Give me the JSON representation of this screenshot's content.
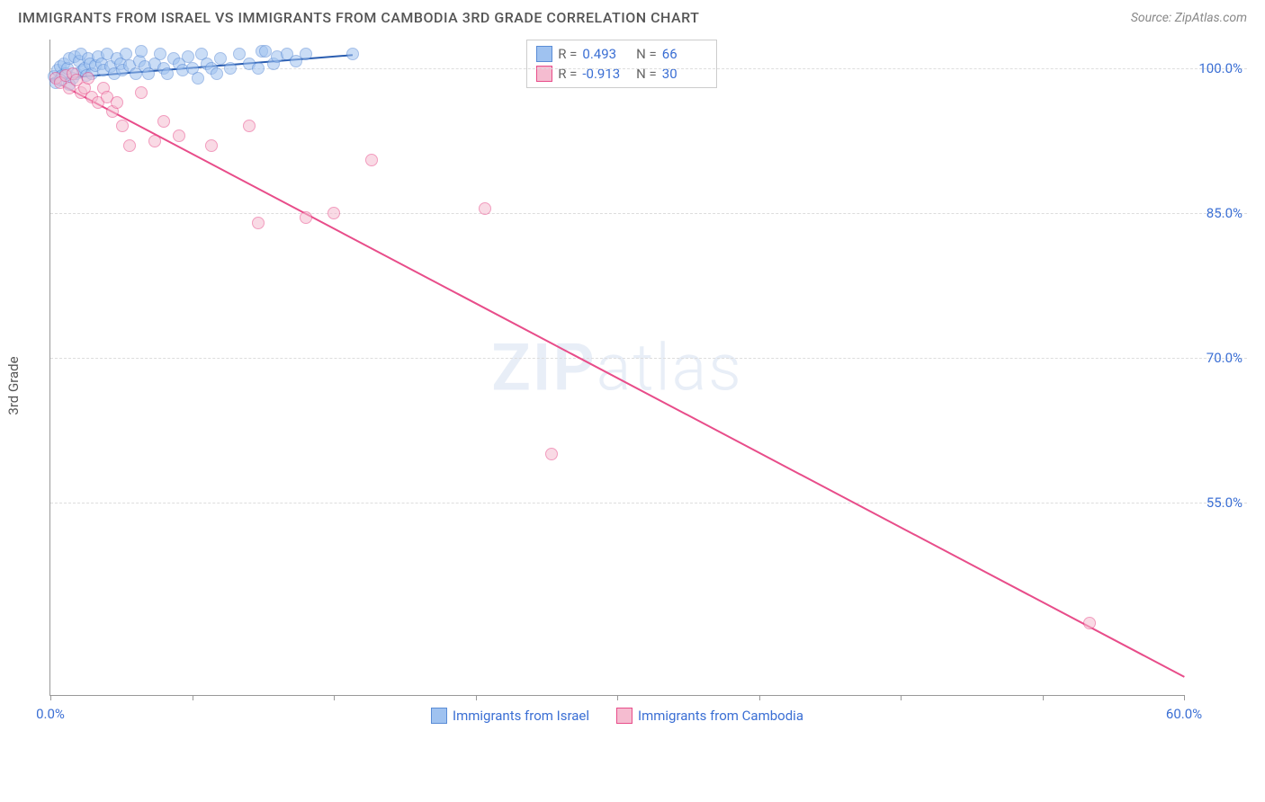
{
  "title": "IMMIGRANTS FROM ISRAEL VS IMMIGRANTS FROM CAMBODIA 3RD GRADE CORRELATION CHART",
  "source": "Source: ZipAtlas.com",
  "watermark_bold": "ZIP",
  "watermark_rest": "atlas",
  "y_axis_label": "3rd Grade",
  "chart": {
    "type": "scatter",
    "xlim": [
      0,
      60
    ],
    "ylim": [
      35,
      103
    ],
    "y_ticks": [
      55,
      70,
      85,
      100
    ],
    "y_tick_labels": [
      "55.0%",
      "70.0%",
      "85.0%",
      "100.0%"
    ],
    "x_ticks": [
      0,
      7.5,
      15,
      22.5,
      30,
      37.5,
      45,
      52.5,
      60
    ],
    "x_tick_labels_shown": {
      "0": "0.0%",
      "60": "60.0%"
    },
    "background_color": "#ffffff",
    "grid_color": "#dddddd",
    "marker_size": 14,
    "marker_opacity": 0.55,
    "series": [
      {
        "name": "Immigrants from Israel",
        "color_fill": "#9fc2f0",
        "color_stroke": "#5a8cd6",
        "R": "0.493",
        "N": "66",
        "regression": {
          "x1": 0,
          "y1": 99.0,
          "x2": 16,
          "y2": 101.5,
          "color": "#2a5db0",
          "width": 2
        },
        "points": [
          [
            0.2,
            99.2
          ],
          [
            0.4,
            99.8
          ],
          [
            0.5,
            100.2
          ],
          [
            0.6,
            99.3
          ],
          [
            0.7,
            100.5
          ],
          [
            0.8,
            99.5
          ],
          [
            0.9,
            100.0
          ],
          [
            1.0,
            101.0
          ],
          [
            1.2,
            99.0
          ],
          [
            1.3,
            101.2
          ],
          [
            1.4,
            99.5
          ],
          [
            1.5,
            100.8
          ],
          [
            1.6,
            101.5
          ],
          [
            1.7,
            99.8
          ],
          [
            1.8,
            100.0
          ],
          [
            1.9,
            99.3
          ],
          [
            2.0,
            101.0
          ],
          [
            2.1,
            100.5
          ],
          [
            2.2,
            99.5
          ],
          [
            2.4,
            100.3
          ],
          [
            2.5,
            101.2
          ],
          [
            2.7,
            100.5
          ],
          [
            2.8,
            99.8
          ],
          [
            3.0,
            101.5
          ],
          [
            3.2,
            100.2
          ],
          [
            3.4,
            99.5
          ],
          [
            3.5,
            101.0
          ],
          [
            3.7,
            100.5
          ],
          [
            3.8,
            99.8
          ],
          [
            4.0,
            101.5
          ],
          [
            4.2,
            100.3
          ],
          [
            4.5,
            99.5
          ],
          [
            4.7,
            100.8
          ],
          [
            4.8,
            101.8
          ],
          [
            5.0,
            100.2
          ],
          [
            5.2,
            99.5
          ],
          [
            5.5,
            100.5
          ],
          [
            5.8,
            101.5
          ],
          [
            6.0,
            100.0
          ],
          [
            6.2,
            99.5
          ],
          [
            6.5,
            101.0
          ],
          [
            6.8,
            100.5
          ],
          [
            7.0,
            99.8
          ],
          [
            7.3,
            101.2
          ],
          [
            7.5,
            100.0
          ],
          [
            7.8,
            99.0
          ],
          [
            8.0,
            101.5
          ],
          [
            8.3,
            100.5
          ],
          [
            8.5,
            100.0
          ],
          [
            8.8,
            99.5
          ],
          [
            9.0,
            101.0
          ],
          [
            9.5,
            100.0
          ],
          [
            10.0,
            101.5
          ],
          [
            10.5,
            100.5
          ],
          [
            11.0,
            100.0
          ],
          [
            11.2,
            101.8
          ],
          [
            11.4,
            101.8
          ],
          [
            11.8,
            100.5
          ],
          [
            12.0,
            101.2
          ],
          [
            12.5,
            101.5
          ],
          [
            13.0,
            100.8
          ],
          [
            13.5,
            101.5
          ],
          [
            16.0,
            101.5
          ],
          [
            0.3,
            98.5
          ],
          [
            0.5,
            98.8
          ],
          [
            1.0,
            98.3
          ]
        ]
      },
      {
        "name": "Immigrants from Cambodia",
        "color_fill": "#f5bcd0",
        "color_stroke": "#e84d8a",
        "R": "-0.913",
        "N": "30",
        "regression": {
          "x1": 0,
          "y1": 99.0,
          "x2": 60,
          "y2": 37.0,
          "color": "#e84d8a",
          "width": 2
        },
        "points": [
          [
            0.3,
            99.0
          ],
          [
            0.5,
            98.5
          ],
          [
            0.8,
            99.3
          ],
          [
            1.0,
            98.0
          ],
          [
            1.2,
            99.5
          ],
          [
            1.4,
            98.8
          ],
          [
            1.6,
            97.5
          ],
          [
            1.8,
            98.0
          ],
          [
            2.0,
            99.0
          ],
          [
            2.2,
            97.0
          ],
          [
            2.5,
            96.5
          ],
          [
            2.8,
            98.0
          ],
          [
            3.0,
            97.0
          ],
          [
            3.3,
            95.5
          ],
          [
            3.5,
            96.5
          ],
          [
            3.8,
            94.0
          ],
          [
            4.2,
            92.0
          ],
          [
            4.8,
            97.5
          ],
          [
            5.5,
            92.5
          ],
          [
            6.0,
            94.5
          ],
          [
            6.8,
            93.0
          ],
          [
            8.5,
            92.0
          ],
          [
            10.5,
            94.0
          ],
          [
            11.0,
            84.0
          ],
          [
            13.5,
            84.5
          ],
          [
            15.0,
            85.0
          ],
          [
            17.0,
            90.5
          ],
          [
            23.0,
            85.5
          ],
          [
            26.5,
            60.0
          ],
          [
            55.0,
            42.5
          ]
        ]
      }
    ]
  },
  "stats_box": {
    "left_pct": 42,
    "top_pct": 0
  },
  "legend_labels": {
    "israel": "Immigrants from Israel",
    "cambodia": "Immigrants from Cambodia"
  }
}
